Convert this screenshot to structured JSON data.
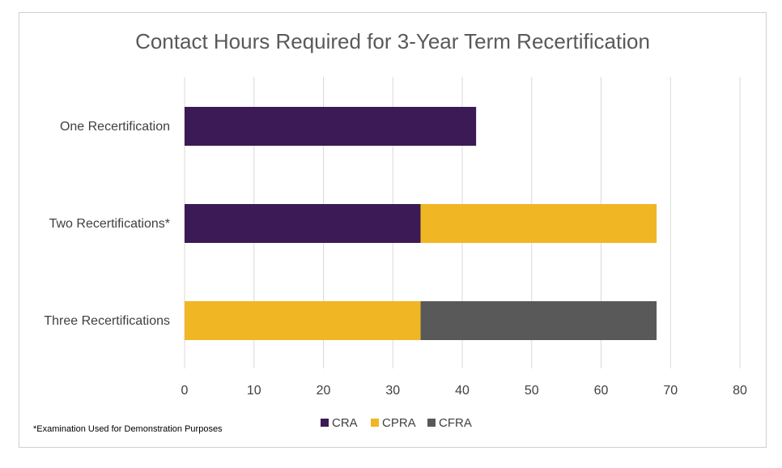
{
  "chart_data": {
    "type": "bar",
    "orientation": "horizontal",
    "stacked": true,
    "title": "Contact Hours Required for 3-Year Term Recertification",
    "xlabel": "",
    "ylabel": "",
    "categories": [
      "One Recertification",
      "Two Recertifications*",
      "Three Recertifications"
    ],
    "series": [
      {
        "name": "CRA",
        "color": "#3b1a55",
        "values": [
          42,
          34,
          0
        ]
      },
      {
        "name": "CPRA",
        "color": "#f0b624",
        "values": [
          0,
          34,
          34
        ]
      },
      {
        "name": "CFRA",
        "color": "#595959",
        "values": [
          0,
          0,
          34
        ]
      }
    ],
    "xlim": [
      0,
      80
    ],
    "xticks": [
      "0",
      "10",
      "20",
      "30",
      "40",
      "50",
      "60",
      "70",
      "80"
    ],
    "grid": "vertical",
    "legend_position": "bottom"
  },
  "footnote": "*Examination Used for Demonstration Purposes"
}
